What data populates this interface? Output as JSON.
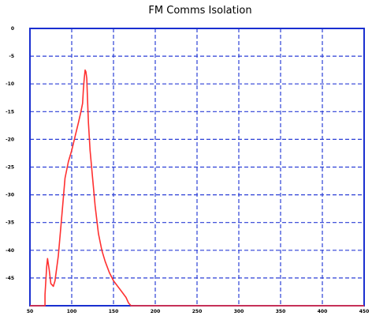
{
  "chart_data": {
    "type": "line",
    "title": "FM Comms Isolation",
    "xlabel": "",
    "ylabel": "",
    "xlim": [
      50,
      450
    ],
    "ylim": [
      -50,
      0
    ],
    "xticks": [
      50,
      100,
      150,
      200,
      250,
      300,
      350,
      400,
      450
    ],
    "yticks": [
      0,
      -5,
      -10,
      -15,
      -20,
      -25,
      -30,
      -35,
      -40,
      -45
    ],
    "grid": true,
    "legend": "none",
    "colors": {
      "grid": "#2b3fd6",
      "frame": "#1a2fd0",
      "line": "#ff3030"
    },
    "series": [
      {
        "x": [
          50,
          68,
          68,
          70,
          71,
          73,
          75,
          78,
          80,
          84,
          88,
          92,
          96,
          100,
          104,
          108,
          111,
          113,
          114,
          115,
          116,
          117,
          118,
          119,
          120,
          122,
          125,
          128,
          132,
          136,
          140,
          145,
          150,
          155,
          160,
          165,
          168,
          171,
          175,
          200,
          250,
          300,
          350,
          400,
          450
        ],
        "y": [
          -50,
          -50,
          -48,
          -43,
          -41.5,
          -43.5,
          -46,
          -46.5,
          -45.5,
          -41,
          -34,
          -27,
          -24,
          -22,
          -19.5,
          -17,
          -15,
          -13.5,
          -11,
          -9,
          -7.5,
          -7.8,
          -9,
          -13,
          -17,
          -22,
          -27,
          -32,
          -37,
          -40,
          -42,
          -44,
          -45.5,
          -46.5,
          -47.5,
          -48.5,
          -49.5,
          -50,
          -50,
          -50,
          -50,
          -50,
          -50,
          -50,
          -50
        ]
      }
    ]
  }
}
